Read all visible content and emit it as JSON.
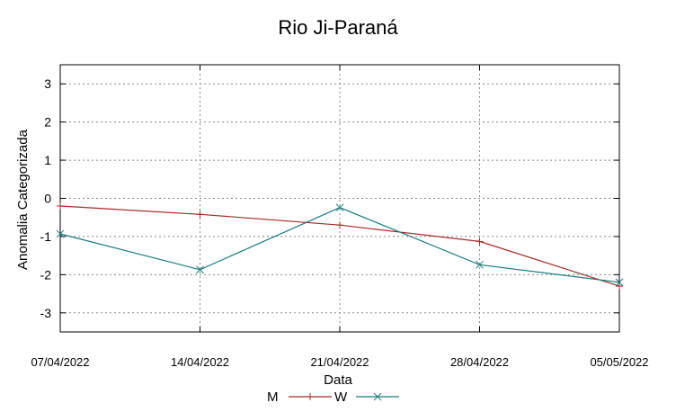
{
  "chart_data": {
    "type": "line",
    "title": "Rio Ji-Paraná",
    "xlabel": "Data",
    "ylabel": "Anomalia Categorizada",
    "categories": [
      "07/04/2022",
      "14/04/2022",
      "21/04/2022",
      "28/04/2022",
      "05/05/2022"
    ],
    "yticks": [
      3,
      2,
      1,
      0,
      -1,
      -2,
      -3
    ],
    "ylim": [
      -3.5,
      3.5
    ],
    "grid": true,
    "legend_position": "bottom",
    "series": [
      {
        "name": "M",
        "color": "#a52a2a",
        "marker": "plus",
        "values": [
          -0.2,
          -0.42,
          -0.7,
          -1.13,
          -2.3
        ]
      },
      {
        "name": "W",
        "color": "#1b7b7b",
        "marker": "cross",
        "values": [
          -0.93,
          -1.87,
          -0.24,
          -1.74,
          -2.2
        ]
      }
    ]
  }
}
